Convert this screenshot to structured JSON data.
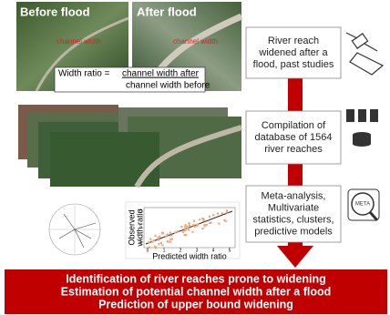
{
  "images": {
    "before": "Before flood",
    "after": "After flood",
    "channel_label_before": "channel width",
    "channel_label_after": "channel width"
  },
  "formula": {
    "lhs": "Width ratio = ",
    "numerator": "channel width after",
    "denominator": "channel width before"
  },
  "steps": [
    {
      "lines": [
        "River reach",
        "widened after a",
        "flood, past studies"
      ]
    },
    {
      "lines": [
        "Compilation of",
        "database of 1564",
        "river reaches"
      ]
    },
    {
      "lines": [
        "Meta-analysis,",
        "Multivariate",
        "statistics, clusters,",
        "predictive models"
      ]
    }
  ],
  "icon_label": "META",
  "scatter": {
    "ylabel": [
      "Observed",
      "width ratio"
    ],
    "xlabel": "Predicted width ratio",
    "yticks": [
      "10",
      "5",
      "1"
    ],
    "xticks": [
      "0",
      "1",
      "2",
      "3",
      "4",
      "5"
    ]
  },
  "outcomes": [
    "Identification of river reaches prone to widening",
    "Estimation of potential channel width after a flood",
    "Prediction of upper bound widening"
  ]
}
